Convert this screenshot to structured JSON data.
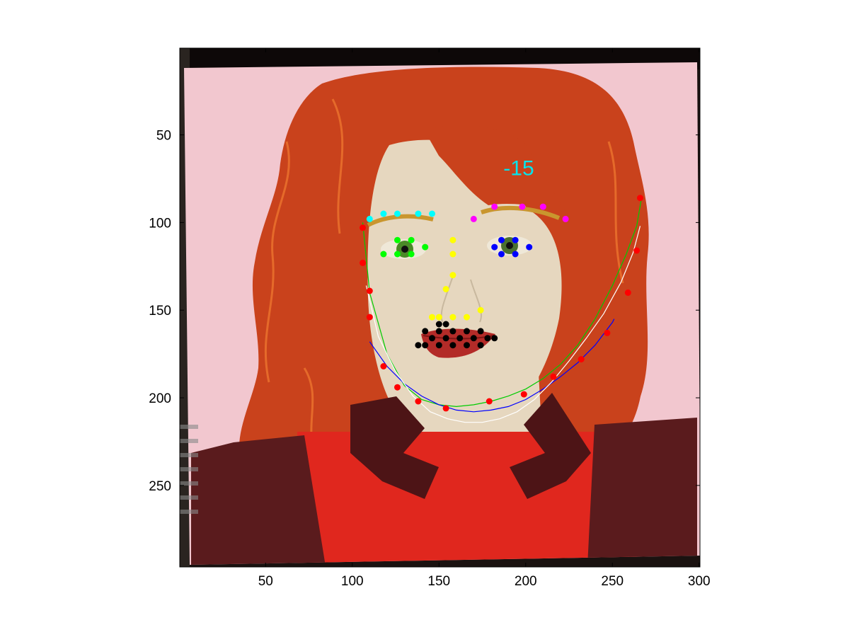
{
  "chart_data": {
    "type": "scatter",
    "title": "",
    "xlabel": "",
    "ylabel": "",
    "xlim": [
      0.5,
      300.5
    ],
    "ylim": [
      0.5,
      296.5
    ],
    "y_reversed": true,
    "xticks": [
      50,
      100,
      150,
      200,
      250,
      300
    ],
    "yticks": [
      50,
      100,
      150,
      200,
      250
    ],
    "annotation": {
      "text": "-15",
      "x": 196,
      "y": 69,
      "color": "#00e5ee"
    },
    "series": [
      {
        "name": "jaw-contour",
        "color": "#ff0000",
        "x": [
          106,
          106,
          110,
          110,
          118,
          126,
          138,
          154,
          179,
          199,
          216,
          232,
          247,
          259,
          264,
          266
        ],
        "y": [
          103,
          123,
          139,
          154,
          182,
          194,
          202,
          206,
          202,
          198,
          188,
          178,
          163,
          140,
          116,
          86
        ]
      },
      {
        "name": "right-brow",
        "color": "#00ffff",
        "x": [
          110,
          118,
          126,
          138,
          146
        ],
        "y": [
          98,
          95,
          95,
          95,
          95
        ]
      },
      {
        "name": "left-brow",
        "color": "#ff00ff",
        "x": [
          170,
          182,
          198,
          210,
          223
        ],
        "y": [
          98,
          91,
          91,
          91,
          98
        ]
      },
      {
        "name": "right-eye",
        "color": "#00ff00",
        "x": [
          118,
          126,
          134,
          142,
          134,
          126
        ],
        "y": [
          118,
          110,
          110,
          114,
          118,
          118
        ]
      },
      {
        "name": "left-eye",
        "color": "#0000ff",
        "x": [
          182,
          186,
          194,
          202,
          194,
          186
        ],
        "y": [
          114,
          110,
          110,
          114,
          118,
          118
        ]
      },
      {
        "name": "nose",
        "color": "#ffff00",
        "x": [
          158,
          158,
          158,
          154,
          146,
          150,
          158,
          166,
          174
        ],
        "y": [
          110,
          118,
          130,
          138,
          154,
          154,
          154,
          154,
          150
        ]
      },
      {
        "name": "mouth",
        "color": "#000000",
        "x": [
          142,
          146,
          150,
          154,
          158,
          162,
          166,
          170,
          174,
          178,
          182,
          138,
          142,
          150,
          158,
          166,
          174,
          150,
          154
        ],
        "y": [
          162,
          166,
          162,
          166,
          162,
          166,
          162,
          166,
          162,
          166,
          166,
          170,
          170,
          170,
          170,
          170,
          170,
          158,
          158
        ]
      }
    ],
    "curves": [
      {
        "name": "green-fit",
        "color": "#00cc00",
        "x": [
          106,
          110,
          120,
          130,
          140,
          150,
          160,
          170,
          180,
          190,
          200,
          210,
          220,
          230,
          240,
          250,
          258,
          264,
          267
        ],
        "y": [
          100,
          140,
          175,
          193,
          201,
          204,
          205,
          204,
          202,
          199,
          195,
          189,
          181,
          170,
          155,
          136,
          118,
          102,
          85
        ]
      },
      {
        "name": "blue-fit",
        "color": "#0000ff",
        "x": [
          110,
          120,
          130,
          140,
          150,
          160,
          170,
          180,
          190,
          200,
          210,
          220,
          230,
          240,
          250,
          251
        ],
        "y": [
          168,
          182,
          192,
          199,
          204,
          207,
          208,
          207,
          205,
          201,
          195,
          188,
          180,
          170,
          157,
          155
        ]
      },
      {
        "name": "white-fit",
        "color": "#ffffff",
        "x": [
          108,
          115,
          125,
          135,
          145,
          155,
          165,
          175,
          185,
          195,
          205,
          215,
          225,
          235,
          245,
          255,
          262,
          266
        ],
        "y": [
          136,
          165,
          185,
          199,
          208,
          212,
          214,
          214,
          212,
          208,
          201,
          191,
          179,
          166,
          152,
          134,
          117,
          102
        ]
      }
    ]
  }
}
